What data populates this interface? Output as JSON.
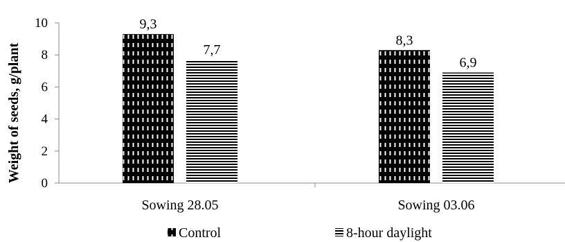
{
  "chart_data": {
    "type": "bar",
    "title": "",
    "xlabel": "",
    "ylabel": "Weight of seeds, g/plant",
    "ylim": [
      0,
      10
    ],
    "yticks": [
      0,
      2,
      4,
      6,
      8,
      10
    ],
    "categories": [
      "Sowing 28.05",
      "Sowing 03.06"
    ],
    "series": [
      {
        "name": "Control",
        "values": [
          9.3,
          8.3
        ],
        "labels": [
          "9,3",
          "8,3"
        ],
        "pattern": "dotted-black"
      },
      {
        "name": "8-hour daylight",
        "values": [
          7.7,
          6.9
        ],
        "labels": [
          "7,7",
          "6,9"
        ],
        "pattern": "horizontal-stripes"
      }
    ],
    "grid": false,
    "legend_position": "bottom"
  }
}
